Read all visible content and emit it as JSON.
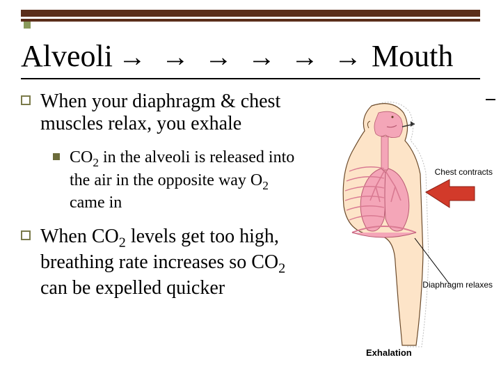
{
  "theme": {
    "bar_color": "#5b2e1a",
    "accent_color": "#8a9a5b",
    "bullet_square_border": "#7a7a4a",
    "bullet_small_fill": "#6b6b3a",
    "figure_skin": "#fde4c8",
    "figure_pink": "#f4a6b8",
    "figure_pink_dark": "#d97a92",
    "arrow_red": "#d23a2a"
  },
  "title": {
    "left": "Alveoli",
    "right": "Mouth",
    "arrow_count": 6
  },
  "bullets": [
    {
      "level": 1,
      "text_html": "When your diaphragm & chest muscles relax, you exhale"
    },
    {
      "level": 2,
      "text_html": "CO<sub class=\"sub\">2</sub> in the alveoli is released into the air in the opposite way O<sub class=\"sub\">2</sub> came in"
    },
    {
      "level": 1,
      "text_html": "When CO<sub class=\"sub\">2</sub> levels get too high, breathing rate increases so CO<sub class=\"sub\">2</sub> can be expelled quicker"
    }
  ],
  "figure": {
    "labels": {
      "chest": "Chest contracts",
      "diaphragm": "Diaphragm relaxes"
    },
    "caption": "Exhalation"
  }
}
